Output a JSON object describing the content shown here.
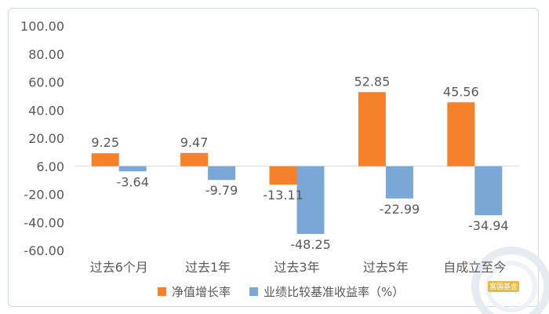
{
  "chart_data": {
    "type": "bar",
    "categories": [
      "过去6个月",
      "过去1年",
      "过去3年",
      "过去5年",
      "自成立至今"
    ],
    "series": [
      {
        "name": "净值增长率",
        "color": "#f5822a",
        "values": [
          9.25,
          9.47,
          -13.11,
          52.85,
          45.56
        ]
      },
      {
        "name": "业绩比较基准收益率（%）",
        "color": "#7aa7d6",
        "values": [
          -3.64,
          -9.79,
          -48.25,
          -22.99,
          -34.94
        ]
      }
    ],
    "data_labels": [
      [
        "9.25",
        "9.47",
        "-13.11",
        "52.85",
        "45.56"
      ],
      [
        "-3.64",
        "-9.79",
        "-48.25",
        "-22.99",
        "-34.94"
      ]
    ],
    "y_ticks": [
      "100.00",
      "80.00",
      "60.00",
      "40.00",
      "20.00",
      "6.00",
      "-20.00",
      "-40.00",
      "-60.00"
    ],
    "ylim": [
      -60,
      100
    ],
    "grid": false,
    "legend_position": "bottom"
  },
  "watermark": {
    "text": "富国基金",
    "color": "#e9b84a"
  }
}
